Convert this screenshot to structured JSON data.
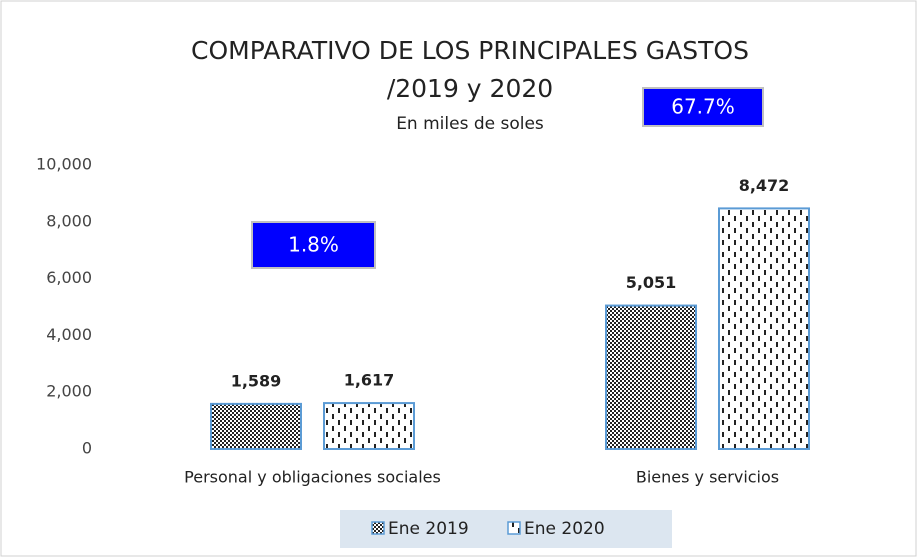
{
  "chart_data": {
    "type": "bar",
    "title": [
      "COMPARATIVO DE LOS PRINCIPALES GASTOS",
      "/2019 y 2020"
    ],
    "subtitle": "En miles de soles",
    "categories": [
      "Personal y obligaciones sociales",
      "Bienes y servicios"
    ],
    "series": [
      {
        "name": "Ene 2019",
        "values": [
          1589,
          5051
        ],
        "value_labels": [
          "1,589",
          "5,051"
        ]
      },
      {
        "name": "Ene 2020",
        "values": [
          1617,
          8472
        ],
        "value_labels": [
          "1,617",
          "8,472"
        ]
      }
    ],
    "annotations": [
      "1.8%",
      "67.7%"
    ],
    "ylim": [
      0,
      10000
    ],
    "yticks": [
      0,
      {
        "value": 2000,
        "label": "2,000"
      },
      {
        "value": 4000,
        "label": "4,000"
      },
      {
        "value": 6000,
        "label": "6,000"
      },
      {
        "value": 8000,
        "label": "8,000"
      },
      {
        "value": 10000,
        "label": "10,000"
      }
    ],
    "legend": "bottom"
  }
}
